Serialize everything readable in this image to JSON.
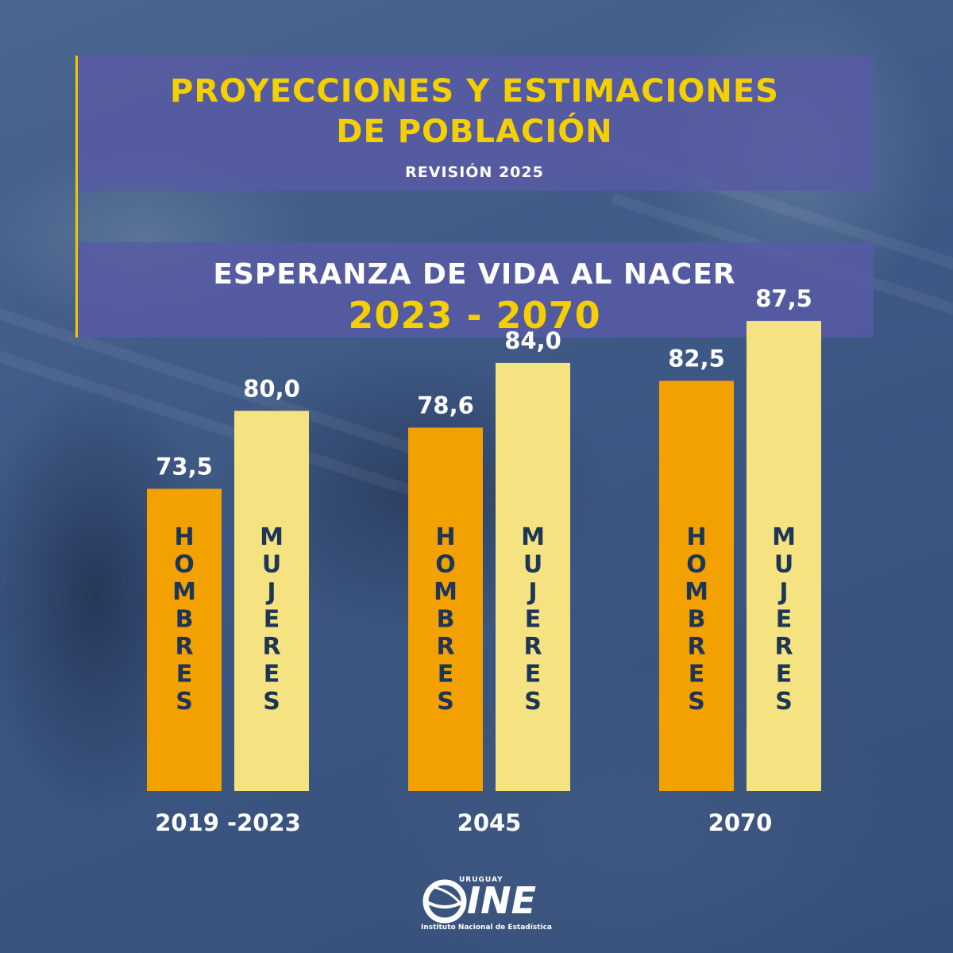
{
  "header": {
    "title_line1": "PROYECCIONES Y ESTIMACIONES",
    "title_line2": "DE POBLACIÓN",
    "revision": "REVISIÓN 2025",
    "subtitle": "ESPERANZA DE VIDA AL NACER",
    "years_range": "2023 - 2070"
  },
  "logo": {
    "top_text": "URUGUAY",
    "brand": "INE",
    "caption": "Instituto Nacional de Estadística"
  },
  "colors": {
    "accent_yellow": "#f5d000",
    "hombres_bar": "#f2a100",
    "mujeres_bar": "#f4e380",
    "bar_text": "#1d3557",
    "panel": "#585aa5"
  },
  "chart_data": {
    "type": "bar",
    "categories": [
      "2019 -2023",
      "2045",
      "2070"
    ],
    "series": [
      {
        "name": "HOMBRES",
        "values": [
          73.5,
          78.6,
          82.5
        ],
        "labels": [
          "73,5",
          "78,6",
          "82,5"
        ]
      },
      {
        "name": "MUJERES",
        "values": [
          80.0,
          84.0,
          87.5
        ],
        "labels": [
          "80,0",
          "84,0",
          "87,5"
        ]
      }
    ],
    "title": "ESPERANZA DE VIDA AL NACER",
    "xlabel": "",
    "ylabel": ""
  }
}
